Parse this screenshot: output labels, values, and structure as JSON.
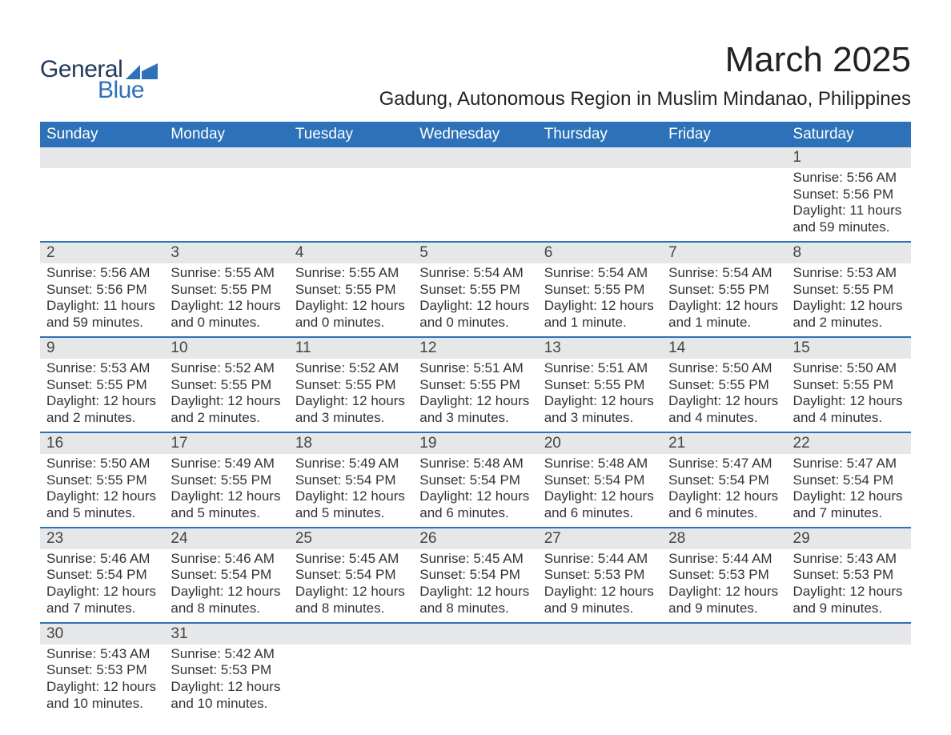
{
  "logo": {
    "top": "General",
    "bottom": "Blue",
    "icon_color": "#2d72b8",
    "top_color": "#1f3a5f"
  },
  "header": {
    "month_title": "March 2025",
    "location": "Gadung, Autonomous Region in Muslim Mindanao, Philippines"
  },
  "colors": {
    "header_bg": "#2d72b8",
    "header_text": "#ffffff",
    "daynum_bg": "#e6e7e8",
    "row_border": "#2d72b8",
    "body_text": "#333333",
    "page_bg": "#ffffff"
  },
  "fonts": {
    "month_title_pt": 44,
    "location_pt": 24,
    "weekday_pt": 19,
    "daynum_pt": 19,
    "cell_pt": 17
  },
  "weekdays": [
    "Sunday",
    "Monday",
    "Tuesday",
    "Wednesday",
    "Thursday",
    "Friday",
    "Saturday"
  ],
  "grid": [
    [
      null,
      null,
      null,
      null,
      null,
      null,
      {
        "n": "1",
        "sr": "Sunrise: 5:56 AM",
        "ss": "Sunset: 5:56 PM",
        "d1": "Daylight: 11 hours",
        "d2": "and 59 minutes."
      }
    ],
    [
      {
        "n": "2",
        "sr": "Sunrise: 5:56 AM",
        "ss": "Sunset: 5:56 PM",
        "d1": "Daylight: 11 hours",
        "d2": "and 59 minutes."
      },
      {
        "n": "3",
        "sr": "Sunrise: 5:55 AM",
        "ss": "Sunset: 5:55 PM",
        "d1": "Daylight: 12 hours",
        "d2": "and 0 minutes."
      },
      {
        "n": "4",
        "sr": "Sunrise: 5:55 AM",
        "ss": "Sunset: 5:55 PM",
        "d1": "Daylight: 12 hours",
        "d2": "and 0 minutes."
      },
      {
        "n": "5",
        "sr": "Sunrise: 5:54 AM",
        "ss": "Sunset: 5:55 PM",
        "d1": "Daylight: 12 hours",
        "d2": "and 0 minutes."
      },
      {
        "n": "6",
        "sr": "Sunrise: 5:54 AM",
        "ss": "Sunset: 5:55 PM",
        "d1": "Daylight: 12 hours",
        "d2": "and 1 minute."
      },
      {
        "n": "7",
        "sr": "Sunrise: 5:54 AM",
        "ss": "Sunset: 5:55 PM",
        "d1": "Daylight: 12 hours",
        "d2": "and 1 minute."
      },
      {
        "n": "8",
        "sr": "Sunrise: 5:53 AM",
        "ss": "Sunset: 5:55 PM",
        "d1": "Daylight: 12 hours",
        "d2": "and 2 minutes."
      }
    ],
    [
      {
        "n": "9",
        "sr": "Sunrise: 5:53 AM",
        "ss": "Sunset: 5:55 PM",
        "d1": "Daylight: 12 hours",
        "d2": "and 2 minutes."
      },
      {
        "n": "10",
        "sr": "Sunrise: 5:52 AM",
        "ss": "Sunset: 5:55 PM",
        "d1": "Daylight: 12 hours",
        "d2": "and 2 minutes."
      },
      {
        "n": "11",
        "sr": "Sunrise: 5:52 AM",
        "ss": "Sunset: 5:55 PM",
        "d1": "Daylight: 12 hours",
        "d2": "and 3 minutes."
      },
      {
        "n": "12",
        "sr": "Sunrise: 5:51 AM",
        "ss": "Sunset: 5:55 PM",
        "d1": "Daylight: 12 hours",
        "d2": "and 3 minutes."
      },
      {
        "n": "13",
        "sr": "Sunrise: 5:51 AM",
        "ss": "Sunset: 5:55 PM",
        "d1": "Daylight: 12 hours",
        "d2": "and 3 minutes."
      },
      {
        "n": "14",
        "sr": "Sunrise: 5:50 AM",
        "ss": "Sunset: 5:55 PM",
        "d1": "Daylight: 12 hours",
        "d2": "and 4 minutes."
      },
      {
        "n": "15",
        "sr": "Sunrise: 5:50 AM",
        "ss": "Sunset: 5:55 PM",
        "d1": "Daylight: 12 hours",
        "d2": "and 4 minutes."
      }
    ],
    [
      {
        "n": "16",
        "sr": "Sunrise: 5:50 AM",
        "ss": "Sunset: 5:55 PM",
        "d1": "Daylight: 12 hours",
        "d2": "and 5 minutes."
      },
      {
        "n": "17",
        "sr": "Sunrise: 5:49 AM",
        "ss": "Sunset: 5:55 PM",
        "d1": "Daylight: 12 hours",
        "d2": "and 5 minutes."
      },
      {
        "n": "18",
        "sr": "Sunrise: 5:49 AM",
        "ss": "Sunset: 5:54 PM",
        "d1": "Daylight: 12 hours",
        "d2": "and 5 minutes."
      },
      {
        "n": "19",
        "sr": "Sunrise: 5:48 AM",
        "ss": "Sunset: 5:54 PM",
        "d1": "Daylight: 12 hours",
        "d2": "and 6 minutes."
      },
      {
        "n": "20",
        "sr": "Sunrise: 5:48 AM",
        "ss": "Sunset: 5:54 PM",
        "d1": "Daylight: 12 hours",
        "d2": "and 6 minutes."
      },
      {
        "n": "21",
        "sr": "Sunrise: 5:47 AM",
        "ss": "Sunset: 5:54 PM",
        "d1": "Daylight: 12 hours",
        "d2": "and 6 minutes."
      },
      {
        "n": "22",
        "sr": "Sunrise: 5:47 AM",
        "ss": "Sunset: 5:54 PM",
        "d1": "Daylight: 12 hours",
        "d2": "and 7 minutes."
      }
    ],
    [
      {
        "n": "23",
        "sr": "Sunrise: 5:46 AM",
        "ss": "Sunset: 5:54 PM",
        "d1": "Daylight: 12 hours",
        "d2": "and 7 minutes."
      },
      {
        "n": "24",
        "sr": "Sunrise: 5:46 AM",
        "ss": "Sunset: 5:54 PM",
        "d1": "Daylight: 12 hours",
        "d2": "and 8 minutes."
      },
      {
        "n": "25",
        "sr": "Sunrise: 5:45 AM",
        "ss": "Sunset: 5:54 PM",
        "d1": "Daylight: 12 hours",
        "d2": "and 8 minutes."
      },
      {
        "n": "26",
        "sr": "Sunrise: 5:45 AM",
        "ss": "Sunset: 5:54 PM",
        "d1": "Daylight: 12 hours",
        "d2": "and 8 minutes."
      },
      {
        "n": "27",
        "sr": "Sunrise: 5:44 AM",
        "ss": "Sunset: 5:53 PM",
        "d1": "Daylight: 12 hours",
        "d2": "and 9 minutes."
      },
      {
        "n": "28",
        "sr": "Sunrise: 5:44 AM",
        "ss": "Sunset: 5:53 PM",
        "d1": "Daylight: 12 hours",
        "d2": "and 9 minutes."
      },
      {
        "n": "29",
        "sr": "Sunrise: 5:43 AM",
        "ss": "Sunset: 5:53 PM",
        "d1": "Daylight: 12 hours",
        "d2": "and 9 minutes."
      }
    ],
    [
      {
        "n": "30",
        "sr": "Sunrise: 5:43 AM",
        "ss": "Sunset: 5:53 PM",
        "d1": "Daylight: 12 hours",
        "d2": "and 10 minutes."
      },
      {
        "n": "31",
        "sr": "Sunrise: 5:42 AM",
        "ss": "Sunset: 5:53 PM",
        "d1": "Daylight: 12 hours",
        "d2": "and 10 minutes."
      },
      null,
      null,
      null,
      null,
      null
    ]
  ]
}
